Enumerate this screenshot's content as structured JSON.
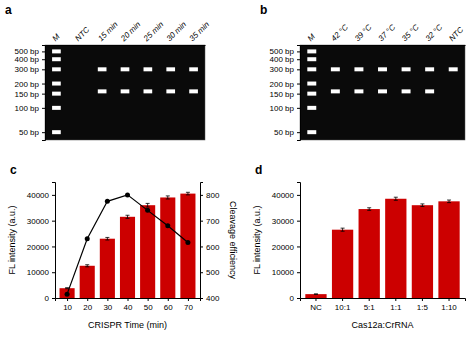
{
  "chart_data": [
    {
      "type": "gel",
      "title": "a",
      "categories": [
        "M",
        "NTC",
        "15 min",
        "20 min",
        "25 min",
        "30 min",
        "35 min"
      ],
      "bands": [
        [
          500,
          400,
          300,
          200,
          150,
          100,
          50
        ],
        [],
        [
          300,
          160
        ],
        [
          300,
          160
        ],
        [
          300,
          160
        ],
        [
          300,
          160
        ],
        [
          300,
          160
        ]
      ],
      "color": "#ffffff",
      "log": "y",
      "ylim": [
        40,
        600
      ],
      "yticks": [
        {
          "value": 500,
          "label": "500 bp"
        },
        {
          "value": 400,
          "label": "400 bp"
        },
        {
          "value": 300,
          "label": "300 bp"
        },
        {
          "value": 200,
          "label": "200 bp"
        },
        {
          "value": 150,
          "label": "150 bp"
        },
        {
          "value": 100,
          "label": "100 bp"
        },
        {
          "value": 50,
          "label": "50 bp"
        }
      ]
    },
    {
      "type": "gel",
      "title": "b",
      "categories": [
        "M",
        "42 °C",
        "39 °C",
        "37 °C",
        "35 °C",
        "32 °C",
        "NTC"
      ],
      "bands": [
        [
          500,
          400,
          300,
          200,
          150,
          100,
          50
        ],
        [
          300,
          160
        ],
        [
          300,
          160
        ],
        [
          300,
          160
        ],
        [
          300,
          160
        ],
        [
          300,
          160
        ],
        [
          300
        ]
      ],
      "color": "#ffffff",
      "log": "y",
      "ylim": [
        40,
        600
      ],
      "yticks": [
        {
          "value": 500,
          "label": "500 bp"
        },
        {
          "value": 400,
          "label": "400 bp"
        },
        {
          "value": 300,
          "label": "300 bp"
        },
        {
          "value": 200,
          "label": "200 bp"
        },
        {
          "value": 150,
          "label": "150 bp"
        },
        {
          "value": 100,
          "label": "100 bp"
        },
        {
          "value": 50,
          "label": "50 bp"
        }
      ]
    },
    {
      "type": "bar",
      "title": "c",
      "xlabel": "CRISPR Time (min)",
      "ylabel": "FL intensity (a.u.)",
      "y2label": "Cleavage efficiency",
      "x": [
        10,
        20,
        30,
        40,
        50,
        60,
        70
      ],
      "xlim": [
        4,
        76
      ],
      "xticks": [
        10,
        20,
        30,
        40,
        50,
        60,
        70
      ],
      "ylim": [
        0,
        45000
      ],
      "yticks": [
        0,
        10000,
        20000,
        30000,
        40000
      ],
      "y2lim": [
        400,
        850
      ],
      "y2ticks": [
        400,
        500,
        600,
        700,
        800
      ],
      "series": [
        {
          "type": "bar",
          "color": "#cc0000",
          "values": [
            3800,
            12500,
            23000,
            31500,
            36000,
            39000,
            40500
          ],
          "errors": [
            200,
            400,
            500,
            600,
            700,
            600,
            500
          ]
        },
        {
          "type": "line",
          "axis": "y2",
          "color": "#000000",
          "marker": "circle",
          "values": [
            415,
            630,
            775,
            800,
            740,
            680,
            615
          ]
        }
      ]
    },
    {
      "type": "bar",
      "title": "d",
      "xlabel": "Cas12a:CrRNA",
      "ylabel": "FL intensity (a.u.)",
      "categories": [
        "NC",
        "10:1",
        "5:1",
        "1:1",
        "1:5",
        "1:10"
      ],
      "values": [
        1500,
        26500,
        34500,
        38500,
        36000,
        37500
      ],
      "errors": [
        100,
        600,
        500,
        600,
        500,
        500
      ],
      "color": "#cc0000",
      "ylim": [
        0,
        45000
      ],
      "yticks": [
        0,
        10000,
        20000,
        30000,
        40000
      ]
    }
  ]
}
